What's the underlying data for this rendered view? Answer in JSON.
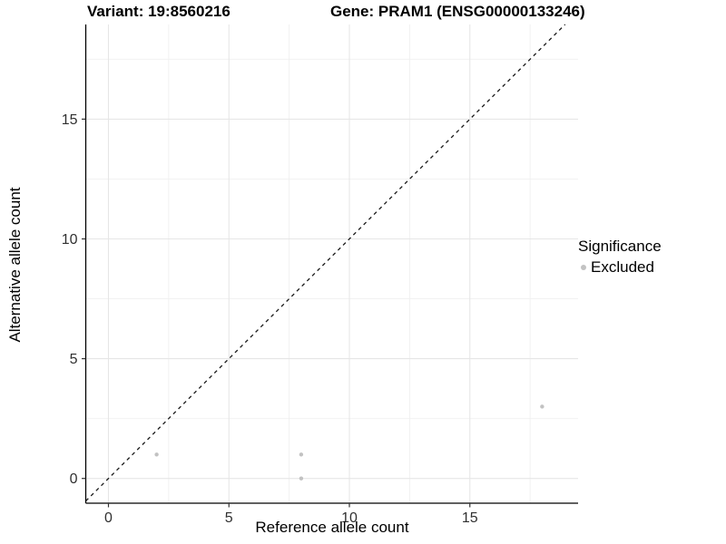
{
  "header": {
    "variant_title": "Variant: 19:8560216",
    "gene_title": "Gene: PRAM1 (ENSG00000133246)"
  },
  "chart_data": {
    "type": "scatter",
    "title_left": "Variant: 19:8560216",
    "title_right": "Gene: PRAM1 (ENSG00000133246)",
    "xlabel": "Reference allele count",
    "ylabel": "Alternative allele count",
    "xlim": [
      -0.95,
      19.5
    ],
    "ylim": [
      -1.05,
      18.95
    ],
    "x_ticks": [
      0,
      5,
      10,
      15
    ],
    "y_ticks": [
      0,
      5,
      10,
      15
    ],
    "x_minor_breaks": [
      2.5,
      7.5,
      12.5,
      17.5
    ],
    "y_minor_breaks": [
      2.5,
      7.5,
      12.5,
      17.5
    ],
    "grid": true,
    "legend": {
      "title": "Significance",
      "position": "right"
    },
    "series": [
      {
        "name": "Excluded",
        "color": "#C2C2C2",
        "points": [
          [
            2,
            1
          ],
          [
            8,
            0
          ],
          [
            8,
            1
          ],
          [
            18,
            3
          ]
        ]
      }
    ],
    "reference_line": {
      "kind": "identity y=x",
      "style": "dashed",
      "color": "#1A1A1A"
    }
  },
  "colors": {
    "background": "#FFFFFF",
    "grid_major": "#E6E6E6",
    "grid_minor": "#F0F0F0",
    "axis_line": "#000000",
    "tick_mark": "#333333",
    "tick_label": "#303030",
    "point": "#C2C2C2",
    "dashed_line": "#1A1A1A"
  }
}
